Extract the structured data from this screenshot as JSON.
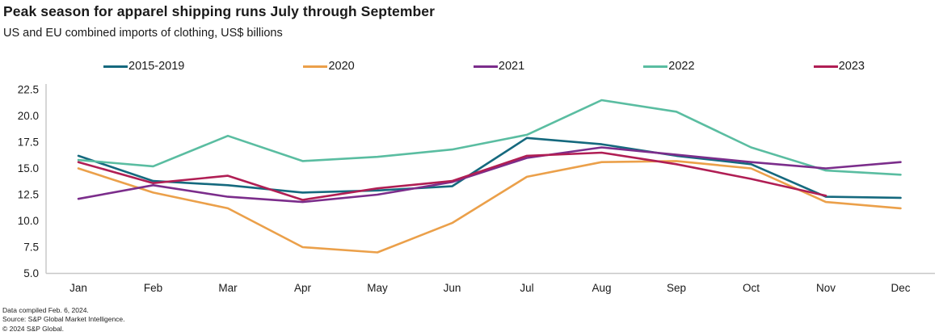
{
  "header": {
    "title": "Peak season for apparel shipping runs July through September",
    "subtitle": "US and EU combined imports of clothing, US$ billions"
  },
  "footer": {
    "line1": "Data compiled Feb. 6, 2024.",
    "line2": "Source: S&P Global Market Intelligence.",
    "line3": "© 2024 S&P Global."
  },
  "chart_data": {
    "type": "line",
    "title": "Peak season for apparel shipping runs July through September",
    "subtitle": "US and EU combined imports of clothing, US$ billions",
    "categories": [
      "Jan",
      "Feb",
      "Mar",
      "Apr",
      "May",
      "Jun",
      "Jul",
      "Aug",
      "Sep",
      "Oct",
      "Nov",
      "Dec"
    ],
    "series": [
      {
        "name": "2015-2019",
        "color": "#15697e",
        "values": [
          16.2,
          13.8,
          13.4,
          12.7,
          12.9,
          13.3,
          17.9,
          17.3,
          16.2,
          15.4,
          12.3,
          12.2
        ]
      },
      {
        "name": "2020",
        "color": "#eba04a",
        "values": [
          15.0,
          12.7,
          11.2,
          7.5,
          7.0,
          9.8,
          14.2,
          15.6,
          15.7,
          15.0,
          11.8,
          11.2
        ]
      },
      {
        "name": "2021",
        "color": "#7b2d8b",
        "values": [
          12.1,
          13.4,
          12.3,
          11.8,
          12.5,
          13.7,
          16.0,
          17.0,
          16.3,
          15.6,
          15.0,
          15.6
        ]
      },
      {
        "name": "2022",
        "color": "#5abda1",
        "values": [
          15.8,
          15.2,
          18.1,
          15.7,
          16.1,
          16.8,
          18.2,
          21.5,
          20.4,
          17.0,
          14.8,
          14.4
        ]
      },
      {
        "name": "2023",
        "color": "#b01e54",
        "values": [
          15.6,
          13.6,
          14.3,
          12.0,
          13.1,
          13.8,
          16.2,
          16.5,
          15.4,
          14.0,
          12.4,
          null
        ]
      }
    ],
    "ylim": [
      5.0,
      22.5
    ],
    "yticks": [
      22.5,
      20.0,
      17.5,
      15.0,
      12.5,
      10.0,
      7.5,
      5.0
    ],
    "ytick_labels": [
      "22.5",
      "20.0",
      "17.5",
      "15.0",
      "12.5",
      "10.0",
      "7.5",
      "5.0"
    ],
    "grid": false,
    "legend_position": "top"
  }
}
